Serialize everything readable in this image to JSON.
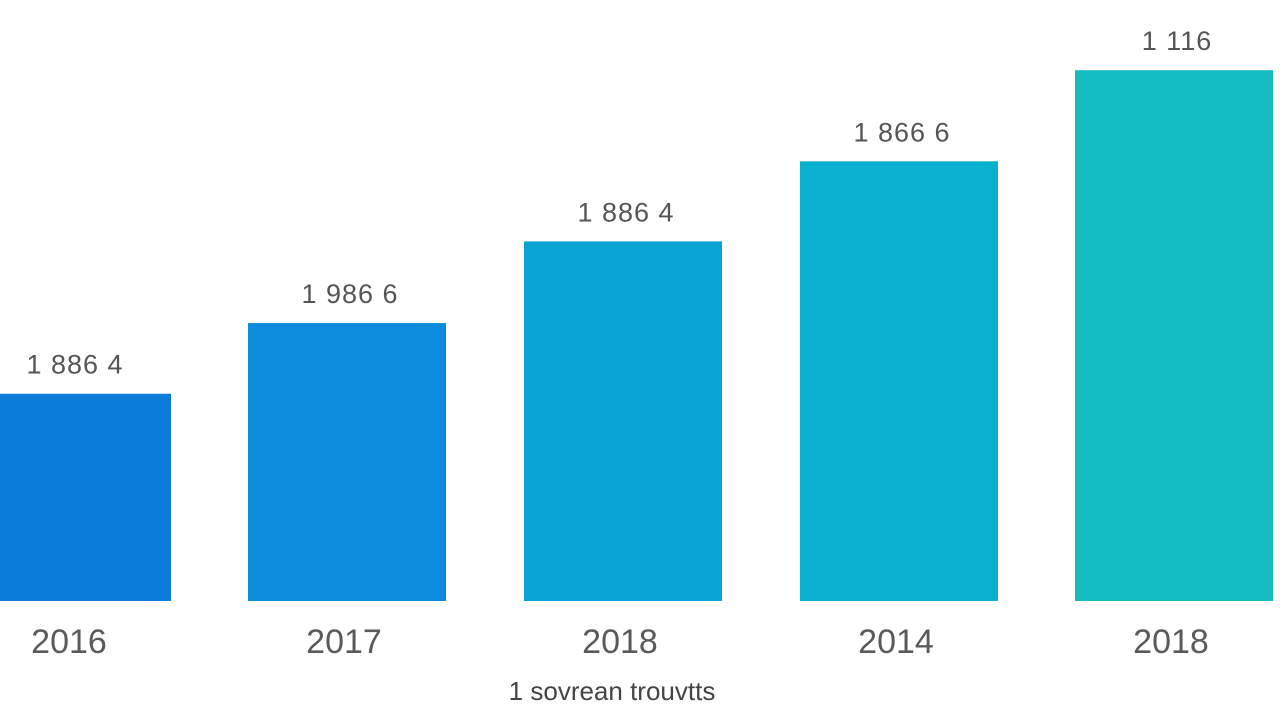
{
  "chart_data": {
    "type": "bar",
    "categories": [
      "2016",
      "2017",
      "2018",
      "2014",
      "2018"
    ],
    "value_labels": [
      "1 886 4",
      "1 986 6",
      "1 886 4",
      "1 866 6",
      "1 116"
    ],
    "values": [
      1320,
      1770,
      2290,
      2800,
      3380
    ],
    "ylim": [
      0,
      3700
    ],
    "title": "",
    "xlabel": "1 sovrean trouvtts",
    "ylabel": "",
    "grid": false,
    "legend": "none",
    "colors": [
      "#0a7bd8",
      "#0a8cdb",
      "#0aa3d6",
      "#0ab0cf",
      "#12bcc1"
    ]
  }
}
